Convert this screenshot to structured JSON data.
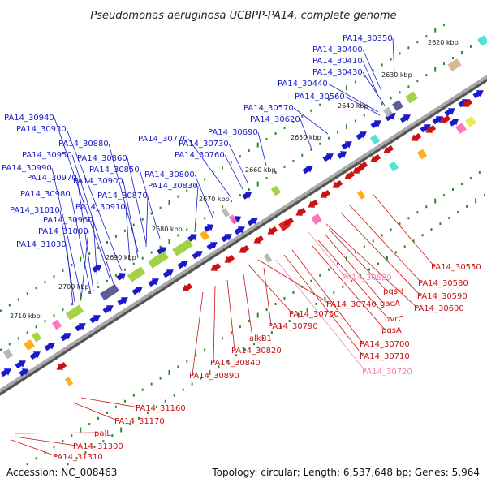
{
  "title": "Pseudomonas aeruginosa UCBPP-PA14, complete genome",
  "accession": "Accession: NC_008463",
  "topology": "Topology: circular; Length: 6,537,648 bp; Genes: 5,964",
  "colors": {
    "forward": "#1a1acc",
    "reverse": "#cc1111",
    "pseudo": "#ee88bb",
    "backbone": "#808080",
    "tick": "#2a8a2a"
  },
  "scale_labels": [
    {
      "kbp": 2620,
      "text": "2620 kbp"
    },
    {
      "kbp": 2630,
      "text": "2630 kbp"
    },
    {
      "kbp": 2640,
      "text": "2640 kbp"
    },
    {
      "kbp": 2650,
      "text": "2650 kbp"
    },
    {
      "kbp": 2660,
      "text": "2660 kbp"
    },
    {
      "kbp": 2670,
      "text": "2670 kbp"
    },
    {
      "kbp": 2680,
      "text": "2680 kbp"
    },
    {
      "kbp": 2690,
      "text": "2690 kbp"
    },
    {
      "kbp": 2700,
      "text": "2700 kbp"
    },
    {
      "kbp": 2710,
      "text": "2710 kbp"
    }
  ],
  "top_labels": [
    "PA14_30350",
    "PA14_30400",
    "PA14_30410",
    "PA14_30430",
    "PA14_30440",
    "PA14_30560",
    "PA14_30570",
    "PA14_30620",
    "PA14_30690",
    "PA14_30730",
    "PA14_30760",
    "PA14_30770",
    "PA14_30800",
    "PA14_30830",
    "PA14_30850",
    "PA14_30860",
    "PA14_30870",
    "PA14_30880",
    "PA14_30900",
    "PA14_30910",
    "PA14_30930",
    "PA14_30940",
    "PA14_30950",
    "PA14_30960",
    "PA14_30970",
    "PA14_30980",
    "PA14_30990",
    "PA14_31000",
    "PA14_31010",
    "PA14_31030"
  ],
  "bottom_labels": [
    {
      "text": "PA14_30550",
      "kind": "r"
    },
    {
      "text": "PA14_30580",
      "kind": "r"
    },
    {
      "text": "PA14_30590",
      "kind": "r"
    },
    {
      "text": "PA14_30600",
      "kind": "r"
    },
    {
      "text": "PA14_30680",
      "kind": "p"
    },
    {
      "text": "pqsH",
      "kind": "r"
    },
    {
      "text": "gacA",
      "kind": "r"
    },
    {
      "text": "uvrC",
      "kind": "r"
    },
    {
      "text": "pgsA",
      "kind": "r"
    },
    {
      "text": "PA14_30700",
      "kind": "r"
    },
    {
      "text": "PA14_30710",
      "kind": "r"
    },
    {
      "text": "PA14_30720",
      "kind": "p"
    },
    {
      "text": "PA14_30740",
      "kind": "r"
    },
    {
      "text": "PA14_30750",
      "kind": "r"
    },
    {
      "text": "PA14_30790",
      "kind": "r"
    },
    {
      "text": "alkB1",
      "kind": "r"
    },
    {
      "text": "PA14_30820",
      "kind": "r"
    },
    {
      "text": "PA14_30840",
      "kind": "r"
    },
    {
      "text": "PA14_30890",
      "kind": "r"
    },
    {
      "text": "PA14_31160",
      "kind": "r"
    },
    {
      "text": "PA14_31170",
      "kind": "r"
    },
    {
      "text": "palL",
      "kind": "r"
    },
    {
      "text": "PA14_31300",
      "kind": "r"
    },
    {
      "text": "PA14_31310",
      "kind": "r"
    }
  ]
}
